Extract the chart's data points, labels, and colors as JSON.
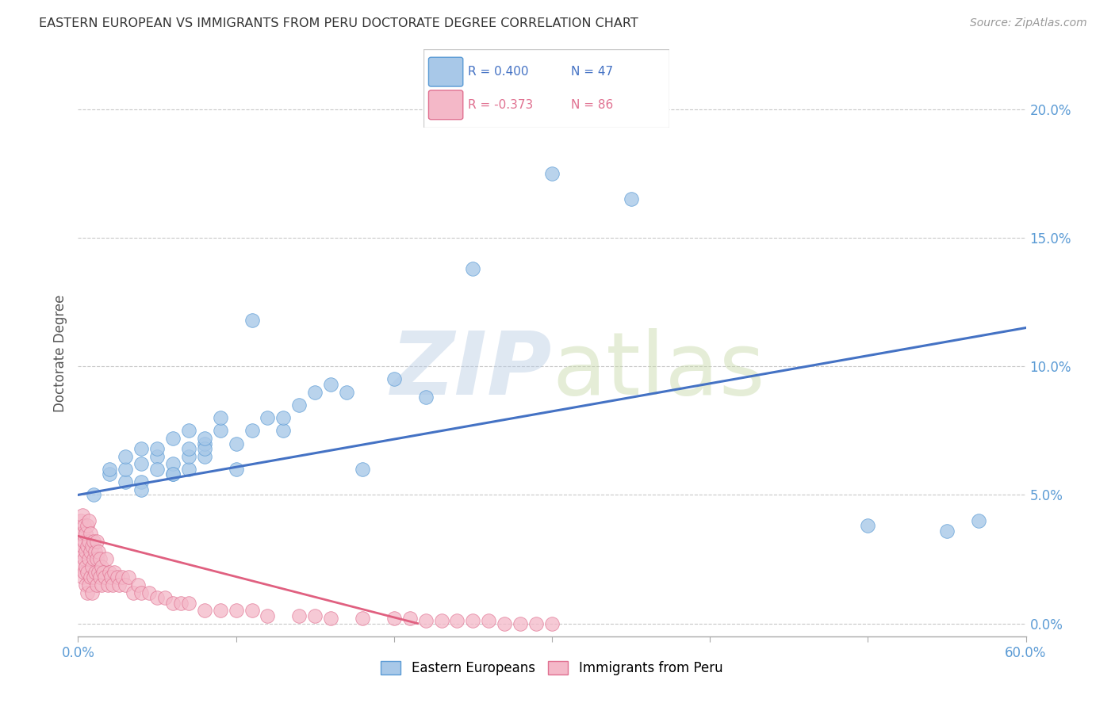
{
  "title": "EASTERN EUROPEAN VS IMMIGRANTS FROM PERU DOCTORATE DEGREE CORRELATION CHART",
  "source": "Source: ZipAtlas.com",
  "ylabel": "Doctorate Degree",
  "xlim": [
    0.0,
    0.6
  ],
  "ylim": [
    -0.005,
    0.215
  ],
  "xticks": [
    0.0,
    0.1,
    0.2,
    0.3,
    0.4,
    0.5,
    0.6
  ],
  "xticklabels": [
    "0.0%",
    "",
    "",
    "",
    "",
    "",
    "60.0%"
  ],
  "yticks": [
    0.0,
    0.05,
    0.1,
    0.15,
    0.2
  ],
  "yticklabels": [
    "0.0%",
    "5.0%",
    "10.0%",
    "15.0%",
    "20.0%"
  ],
  "blue_color": "#a8c8e8",
  "blue_edge": "#5b9bd5",
  "pink_color": "#f4b8c8",
  "pink_edge": "#e07090",
  "blue_line_color": "#4472c4",
  "pink_line_color": "#e06080",
  "R_blue": 0.4,
  "N_blue": 47,
  "R_pink": -0.373,
  "N_pink": 86,
  "legend_label_blue": "Eastern Europeans",
  "legend_label_pink": "Immigrants from Peru",
  "background_color": "#ffffff",
  "grid_color": "#c8c8c8",
  "tick_color": "#5b9bd5",
  "blue_scatter_x": [
    0.01,
    0.02,
    0.02,
    0.03,
    0.03,
    0.03,
    0.04,
    0.04,
    0.04,
    0.04,
    0.05,
    0.05,
    0.05,
    0.06,
    0.06,
    0.06,
    0.06,
    0.07,
    0.07,
    0.07,
    0.07,
    0.08,
    0.08,
    0.08,
    0.08,
    0.09,
    0.09,
    0.1,
    0.1,
    0.11,
    0.11,
    0.12,
    0.13,
    0.13,
    0.14,
    0.15,
    0.16,
    0.17,
    0.18,
    0.2,
    0.22,
    0.25,
    0.3,
    0.35,
    0.5,
    0.55,
    0.57
  ],
  "blue_scatter_y": [
    0.05,
    0.058,
    0.06,
    0.055,
    0.06,
    0.065,
    0.062,
    0.068,
    0.055,
    0.052,
    0.065,
    0.068,
    0.06,
    0.058,
    0.062,
    0.058,
    0.072,
    0.06,
    0.065,
    0.068,
    0.075,
    0.065,
    0.07,
    0.068,
    0.072,
    0.075,
    0.08,
    0.07,
    0.06,
    0.118,
    0.075,
    0.08,
    0.075,
    0.08,
    0.085,
    0.09,
    0.093,
    0.09,
    0.06,
    0.095,
    0.088,
    0.138,
    0.175,
    0.165,
    0.038,
    0.036,
    0.04
  ],
  "pink_scatter_x": [
    0.001,
    0.001,
    0.002,
    0.002,
    0.003,
    0.003,
    0.003,
    0.003,
    0.004,
    0.004,
    0.004,
    0.004,
    0.005,
    0.005,
    0.005,
    0.005,
    0.006,
    0.006,
    0.006,
    0.006,
    0.007,
    0.007,
    0.007,
    0.007,
    0.008,
    0.008,
    0.008,
    0.009,
    0.009,
    0.009,
    0.01,
    0.01,
    0.01,
    0.011,
    0.011,
    0.012,
    0.012,
    0.012,
    0.013,
    0.013,
    0.014,
    0.014,
    0.015,
    0.015,
    0.016,
    0.017,
    0.018,
    0.019,
    0.02,
    0.021,
    0.022,
    0.023,
    0.025,
    0.026,
    0.028,
    0.03,
    0.032,
    0.035,
    0.038,
    0.04,
    0.045,
    0.05,
    0.055,
    0.06,
    0.065,
    0.07,
    0.08,
    0.09,
    0.1,
    0.11,
    0.12,
    0.14,
    0.15,
    0.16,
    0.18,
    0.2,
    0.21,
    0.22,
    0.23,
    0.24,
    0.25,
    0.26,
    0.27,
    0.28,
    0.29,
    0.3
  ],
  "pink_scatter_y": [
    0.028,
    0.035,
    0.022,
    0.04,
    0.03,
    0.018,
    0.035,
    0.042,
    0.025,
    0.032,
    0.02,
    0.038,
    0.028,
    0.015,
    0.035,
    0.022,
    0.03,
    0.02,
    0.038,
    0.012,
    0.025,
    0.032,
    0.015,
    0.04,
    0.028,
    0.018,
    0.035,
    0.022,
    0.03,
    0.012,
    0.025,
    0.018,
    0.032,
    0.02,
    0.028,
    0.025,
    0.015,
    0.032,
    0.02,
    0.028,
    0.018,
    0.025,
    0.022,
    0.015,
    0.02,
    0.018,
    0.025,
    0.015,
    0.02,
    0.018,
    0.015,
    0.02,
    0.018,
    0.015,
    0.018,
    0.015,
    0.018,
    0.012,
    0.015,
    0.012,
    0.012,
    0.01,
    0.01,
    0.008,
    0.008,
    0.008,
    0.005,
    0.005,
    0.005,
    0.005,
    0.003,
    0.003,
    0.003,
    0.002,
    0.002,
    0.002,
    0.002,
    0.001,
    0.001,
    0.001,
    0.001,
    0.001,
    0.0,
    0.0,
    0.0,
    0.0
  ],
  "blue_line_x": [
    0.0,
    0.6
  ],
  "blue_line_y": [
    0.05,
    0.115
  ],
  "pink_line_x": [
    0.0,
    0.215
  ],
  "pink_line_y": [
    0.034,
    0.0
  ]
}
